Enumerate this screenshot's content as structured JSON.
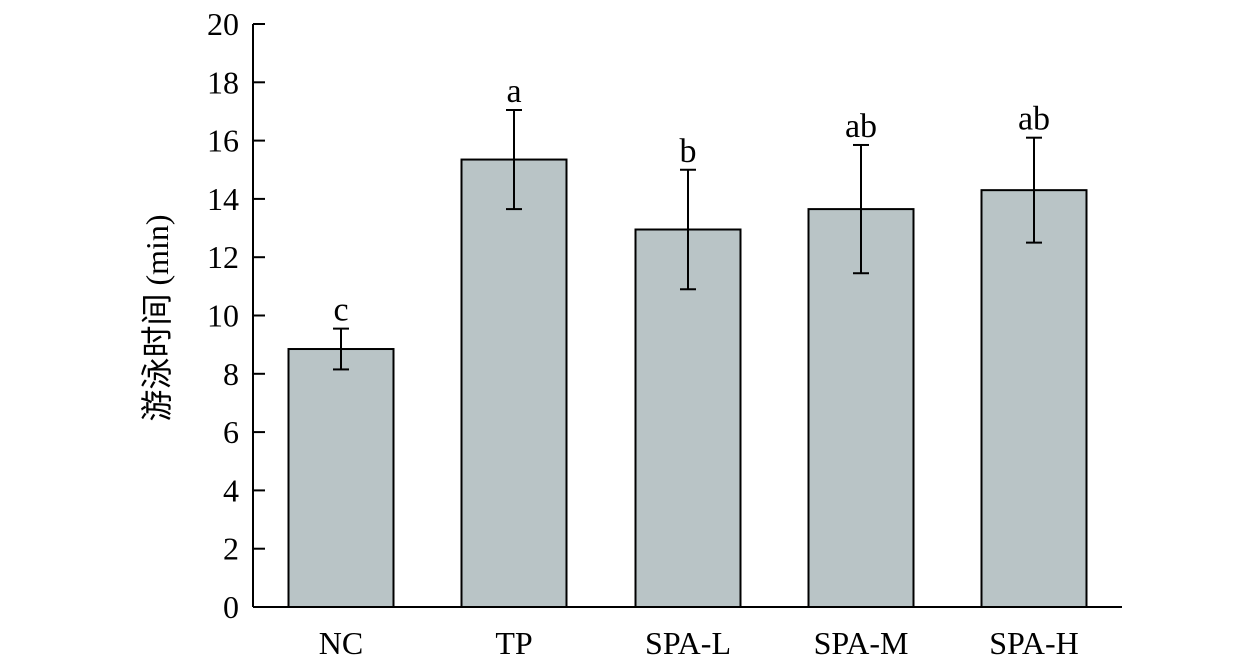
{
  "chart_data": {
    "type": "bar",
    "title": "",
    "xlabel": "",
    "ylabel": "游泳时间 (min)",
    "ylim": [
      0,
      20
    ],
    "yticks": [
      0,
      2,
      4,
      6,
      8,
      10,
      12,
      14,
      16,
      18,
      20
    ],
    "categories": [
      "NC",
      "TP",
      "SPA-L",
      "SPA-M",
      "SPA-H"
    ],
    "values": [
      8.85,
      15.35,
      12.95,
      13.65,
      14.3
    ],
    "errors": [
      0.7,
      1.7,
      2.05,
      2.2,
      1.8
    ],
    "significance_labels": [
      "c",
      "a",
      "b",
      "ab",
      "ab"
    ],
    "bar_color": "#b9c4c6",
    "grid": false,
    "legend": "none"
  }
}
